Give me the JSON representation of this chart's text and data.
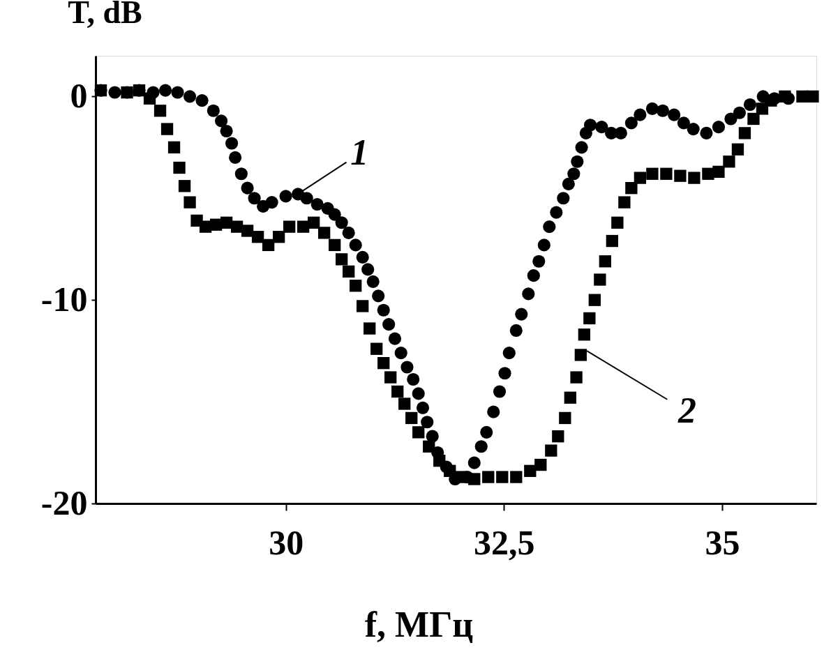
{
  "chart_data": {
    "type": "scatter",
    "xlabel": "f, МГц",
    "ylabel": "T, dB",
    "xlim": [
      27.82,
      36.08
    ],
    "ylim": [
      -20,
      2
    ],
    "xticks": [
      30,
      {
        "value": 32.5,
        "label": "32,5"
      },
      35
    ],
    "yticks": [
      0,
      -10,
      -20
    ],
    "grid": false,
    "series": [
      {
        "color": "#000000",
        "marker": "circle",
        "x": [
          27.88,
          28.04,
          28.18,
          28.32,
          28.48,
          28.62,
          28.76,
          28.9,
          29.04,
          29.17,
          29.26,
          29.32,
          29.38,
          29.42,
          29.49,
          29.56,
          29.64,
          29.74,
          29.84,
          30.0,
          30.14,
          30.24,
          30.36,
          30.48,
          30.56,
          30.64,
          30.72,
          30.8,
          30.88,
          30.94,
          31.0,
          31.06,
          31.12,
          31.18,
          31.25,
          31.32,
          31.39,
          31.46,
          31.52,
          31.57,
          31.62,
          31.68,
          31.74,
          31.84,
          31.94,
          32.08,
          32.16,
          32.24,
          32.3,
          32.38,
          32.45,
          32.51,
          32.56,
          32.64,
          32.7,
          32.78,
          32.84,
          32.9,
          32.96,
          33.02,
          33.1,
          33.18,
          33.24,
          33.3,
          33.34,
          33.39,
          33.44,
          33.49,
          33.62,
          33.73,
          33.84,
          33.96,
          34.06,
          34.2,
          34.32,
          34.45,
          34.56,
          34.67,
          34.82,
          34.96,
          35.1,
          35.2,
          35.32,
          35.47,
          35.6,
          35.76
        ],
        "values": [
          0.3,
          0.2,
          0.2,
          0.3,
          0.2,
          0.3,
          0.2,
          0.0,
          -0.2,
          -0.7,
          -1.2,
          -1.7,
          -2.3,
          -3.0,
          -3.8,
          -4.5,
          -5.0,
          -5.4,
          -5.2,
          -4.9,
          -4.8,
          -5.0,
          -5.3,
          -5.5,
          -5.8,
          -6.2,
          -6.7,
          -7.3,
          -7.9,
          -8.5,
          -9.1,
          -9.8,
          -10.5,
          -11.2,
          -11.9,
          -12.6,
          -13.3,
          -13.9,
          -14.6,
          -15.3,
          -16.0,
          -16.7,
          -17.5,
          -18.2,
          -18.8,
          -18.7,
          -18.0,
          -17.2,
          -16.5,
          -15.5,
          -14.5,
          -13.6,
          -12.6,
          -11.5,
          -10.7,
          -9.7,
          -8.8,
          -8.1,
          -7.3,
          -6.4,
          -5.7,
          -5.0,
          -4.3,
          -3.8,
          -3.2,
          -2.5,
          -1.8,
          -1.4,
          -1.5,
          -1.8,
          -1.8,
          -1.3,
          -0.9,
          -0.6,
          -0.7,
          -0.9,
          -1.3,
          -1.6,
          -1.8,
          -1.5,
          -1.1,
          -0.8,
          -0.4,
          0.0,
          -0.1,
          -0.1
        ]
      },
      {
        "color": "#000000",
        "marker": "square",
        "x": [
          27.88,
          28.18,
          28.32,
          28.44,
          28.56,
          28.64,
          28.72,
          28.78,
          28.84,
          28.9,
          28.98,
          29.08,
          29.2,
          29.32,
          29.44,
          29.56,
          29.68,
          29.8,
          29.92,
          30.04,
          30.2,
          30.32,
          30.44,
          30.56,
          30.64,
          30.72,
          30.8,
          30.88,
          30.96,
          31.04,
          31.12,
          31.2,
          31.28,
          31.36,
          31.44,
          31.52,
          31.64,
          31.76,
          31.88,
          32.0,
          32.16,
          32.32,
          32.48,
          32.64,
          32.8,
          32.92,
          33.04,
          33.12,
          33.2,
          33.26,
          33.33,
          33.38,
          33.42,
          33.48,
          33.54,
          33.6,
          33.66,
          33.74,
          33.8,
          33.88,
          33.96,
          34.06,
          34.2,
          34.36,
          34.52,
          34.68,
          34.84,
          34.96,
          35.08,
          35.18,
          35.26,
          35.36,
          35.46,
          35.56,
          35.72,
          35.92,
          36.04
        ],
        "values": [
          0.3,
          0.2,
          0.3,
          -0.1,
          -0.7,
          -1.6,
          -2.5,
          -3.5,
          -4.4,
          -5.2,
          -6.1,
          -6.4,
          -6.3,
          -6.2,
          -6.4,
          -6.6,
          -6.9,
          -7.3,
          -6.9,
          -6.4,
          -6.4,
          -6.2,
          -6.7,
          -7.3,
          -8.0,
          -8.6,
          -9.3,
          -10.3,
          -11.4,
          -12.4,
          -13.1,
          -13.8,
          -14.5,
          -15.1,
          -15.8,
          -16.5,
          -17.2,
          -17.9,
          -18.4,
          -18.7,
          -18.8,
          -18.7,
          -18.7,
          -18.7,
          -18.4,
          -18.1,
          -17.4,
          -16.7,
          -15.8,
          -14.8,
          -13.8,
          -12.7,
          -11.7,
          -10.9,
          -10.0,
          -9.0,
          -8.1,
          -7.1,
          -6.2,
          -5.2,
          -4.5,
          -4.0,
          -3.8,
          -3.8,
          -3.9,
          -4.0,
          -3.8,
          -3.7,
          -3.2,
          -2.6,
          -1.8,
          -1.1,
          -0.6,
          -0.2,
          0.0,
          0.0,
          0.0
        ]
      }
    ],
    "annotations": [
      {
        "text": "1",
        "x": 30.1,
        "y": -4.9
      },
      {
        "text": "2",
        "x": 33.45,
        "y": -12.5
      }
    ]
  }
}
